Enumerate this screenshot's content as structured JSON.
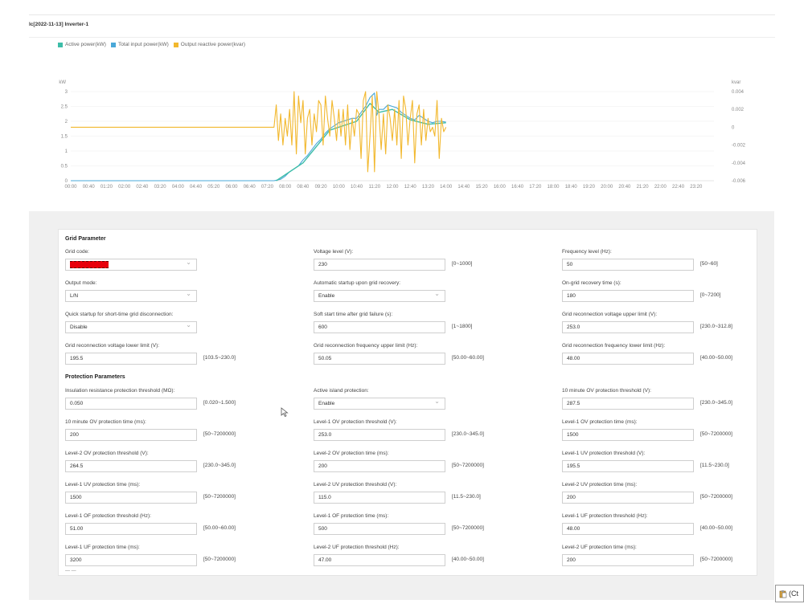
{
  "chart": {
    "title": "lc[2022-11-13] Inverter-1",
    "legend": [
      {
        "label": "Active power(kW)",
        "color": "#3dbda8"
      },
      {
        "label": "Total input power(kW)",
        "color": "#4aa8d8"
      },
      {
        "label": "Output reactive power(kvar)",
        "color": "#f2b82e"
      }
    ],
    "left_axis_unit": "kW",
    "right_axis_unit": "kvar"
  },
  "chart_data": {
    "type": "line",
    "x_ticks": [
      "00:00",
      "00:40",
      "01:20",
      "02:00",
      "02:40",
      "03:20",
      "04:00",
      "04:40",
      "05:20",
      "06:00",
      "06:40",
      "07:20",
      "08:00",
      "08:40",
      "09:20",
      "10:00",
      "10:40",
      "11:20",
      "12:00",
      "12:40",
      "13:20",
      "14:00",
      "14:40",
      "15:20",
      "16:00",
      "16:40",
      "17:20",
      "18:00",
      "18:40",
      "19:20",
      "20:00",
      "20:40",
      "21:20",
      "22:00",
      "22:40",
      "23:20"
    ],
    "y_left_ticks": [
      "0",
      "0.5",
      "1",
      "1.5",
      "2",
      "2.5",
      "3"
    ],
    "y_left_range": [
      0,
      3
    ],
    "y_right_ticks": [
      "-0.006",
      "-0.004",
      "-0.002",
      "0",
      "0.002",
      "0.004"
    ],
    "y_right_range": [
      -0.006,
      0.004
    ],
    "series": [
      {
        "name": "Total input power(kW)",
        "axis": "left",
        "color": "#4aa8d8",
        "points": [
          [
            0,
            0
          ],
          [
            100,
            0
          ],
          [
            420,
            0
          ],
          [
            455,
            0
          ],
          [
            470,
            0.05
          ],
          [
            480,
            0.15
          ],
          [
            490,
            0.3
          ],
          [
            500,
            0.4
          ],
          [
            510,
            0.5
          ],
          [
            520,
            0.7
          ],
          [
            530,
            0.85
          ],
          [
            540,
            1.05
          ],
          [
            550,
            1.25
          ],
          [
            560,
            1.4
          ],
          [
            570,
            1.6
          ],
          [
            580,
            1.75
          ],
          [
            590,
            1.85
          ],
          [
            600,
            1.95
          ],
          [
            610,
            2.0
          ],
          [
            620,
            2.05
          ],
          [
            630,
            2.1
          ],
          [
            640,
            2.1
          ],
          [
            650,
            2.3
          ],
          [
            660,
            2.5
          ],
          [
            670,
            2.8
          ],
          [
            680,
            2.95
          ],
          [
            685,
            2.2
          ],
          [
            690,
            2.4
          ],
          [
            700,
            2.4
          ],
          [
            710,
            2.55
          ],
          [
            720,
            2.5
          ],
          [
            730,
            2.45
          ],
          [
            740,
            2.3
          ],
          [
            750,
            2.2
          ],
          [
            760,
            2.1
          ],
          [
            770,
            2.05
          ],
          [
            780,
            2.2
          ],
          [
            790,
            2.1
          ],
          [
            800,
            2.0
          ],
          [
            810,
            1.95
          ],
          [
            820,
            2.0
          ],
          [
            830,
            2.0
          ],
          [
            840,
            1.97
          ]
        ]
      },
      {
        "name": "Active power(kW)",
        "axis": "left",
        "color": "#3dbda8",
        "points": [
          [
            460,
            0
          ],
          [
            520,
            0.6
          ],
          [
            580,
            1.7
          ],
          [
            640,
            2.0
          ],
          [
            670,
            2.6
          ],
          [
            690,
            2.3
          ],
          [
            720,
            2.4
          ],
          [
            760,
            2.05
          ],
          [
            800,
            1.9
          ],
          [
            840,
            1.95
          ]
        ]
      },
      {
        "name": "Output reactive power(kvar)",
        "axis": "right",
        "color": "#f2b82e",
        "points": [
          [
            0,
            0
          ],
          [
            455,
            0
          ],
          [
            460,
            0.0025
          ],
          [
            465,
            -0.0015
          ],
          [
            470,
            0.0015
          ],
          [
            475,
            -0.002
          ],
          [
            480,
            0.001
          ],
          [
            485,
            -0.001
          ],
          [
            490,
            0.002
          ],
          [
            495,
            -0.002
          ],
          [
            500,
            0.004
          ],
          [
            505,
            -0.003
          ],
          [
            510,
            0.0035
          ],
          [
            515,
            0.0005
          ],
          [
            520,
            0.003
          ],
          [
            525,
            -0.003
          ],
          [
            530,
            0.001
          ],
          [
            535,
            0.002
          ],
          [
            540,
            -0.002
          ],
          [
            545,
            0.0015
          ],
          [
            550,
            -0.0005
          ],
          [
            555,
            0.003
          ],
          [
            560,
            0.0025
          ],
          [
            565,
            -0.002
          ],
          [
            570,
            0.0035
          ],
          [
            575,
            0.001
          ],
          [
            580,
            -0.001
          ],
          [
            585,
            0.003
          ],
          [
            590,
            0.001
          ],
          [
            595,
            -0.0015
          ],
          [
            600,
            0.002
          ],
          [
            605,
            -0.001
          ],
          [
            610,
            0.002
          ],
          [
            615,
            -0.002
          ],
          [
            620,
            0.0025
          ],
          [
            625,
            -0.0025
          ],
          [
            630,
            0.001
          ],
          [
            635,
            -0.001
          ],
          [
            640,
            0.002
          ],
          [
            645,
            0.0015
          ],
          [
            650,
            -0.0035
          ],
          [
            655,
            0.003
          ],
          [
            660,
            0.004
          ],
          [
            665,
            -0.005
          ],
          [
            670,
            -0.001
          ],
          [
            675,
            0.0035
          ],
          [
            680,
            -0.005
          ],
          [
            685,
            0.004
          ],
          [
            690,
            0.0015
          ],
          [
            695,
            -0.0025
          ],
          [
            700,
            0.0015
          ],
          [
            705,
            -0.003
          ],
          [
            710,
            0.0025
          ],
          [
            715,
            0.001
          ],
          [
            720,
            -0.0015
          ],
          [
            725,
            0.002
          ],
          [
            730,
            -0.002
          ],
          [
            735,
            0.003
          ],
          [
            740,
            -0.0035
          ],
          [
            745,
            0.0035
          ],
          [
            750,
            0.002
          ],
          [
            755,
            -0.002
          ],
          [
            760,
            0.001
          ],
          [
            765,
            0.003
          ],
          [
            770,
            -0.004
          ],
          [
            775,
            0.0015
          ],
          [
            780,
            0.0025
          ],
          [
            785,
            -0.002
          ],
          [
            790,
            0.002
          ],
          [
            795,
            -0.0015
          ],
          [
            800,
            0.001
          ],
          [
            805,
            -0.0005
          ],
          [
            810,
            0.0
          ],
          [
            815,
            -0.001
          ],
          [
            820,
            0.003
          ],
          [
            825,
            -0.0035
          ],
          [
            830,
            0.001
          ],
          [
            835,
            -0.0005
          ],
          [
            840,
            0.0
          ]
        ]
      }
    ]
  },
  "grid_section": {
    "title": "Grid Parameter",
    "fields": [
      {
        "label": "Grid code:",
        "value": "",
        "type": "select",
        "redacted": true,
        "range": ""
      },
      {
        "label": "Voltage level (V):",
        "value": "230",
        "type": "input",
        "range": "[0~1000]"
      },
      {
        "label": "Frequency level (Hz):",
        "value": "50",
        "type": "input",
        "range": "[50~60]"
      },
      {
        "label": "Output mode:",
        "value": "L/N",
        "type": "select",
        "range": ""
      },
      {
        "label": "Automatic startup upon grid recovery:",
        "value": "Enable",
        "type": "select",
        "range": ""
      },
      {
        "label": "On-grid recovery time (s):",
        "value": "180",
        "type": "input",
        "range": "[0~7200]"
      },
      {
        "label": "Quick startup for short-time grid disconnection:",
        "value": "Disable",
        "type": "select",
        "range": ""
      },
      {
        "label": "Soft start time after grid failure (s):",
        "value": "600",
        "type": "input",
        "range": "[1~1800]"
      },
      {
        "label": "Grid reconnection voltage upper limit (V):",
        "value": "253.0",
        "type": "input",
        "range": "[230.0~312.8]"
      },
      {
        "label": "Grid reconnection voltage lower limit (V):",
        "value": "195.5",
        "type": "input",
        "range": "[103.5~230.0]"
      },
      {
        "label": "Grid reconnection frequency upper limit (Hz):",
        "value": "50.05",
        "type": "input",
        "range": "[50.00~60.00]"
      },
      {
        "label": "Grid reconnection frequency lower limit (Hz):",
        "value": "48.00",
        "type": "input",
        "range": "[40.00~50.00]"
      }
    ]
  },
  "protection_section": {
    "title": "Protection Parameters",
    "fields": [
      {
        "label": "Insulation resistance protection threshold (MΩ):",
        "value": "0.050",
        "type": "input",
        "range": "[0.020~1.500]"
      },
      {
        "label": "Active island protection:",
        "value": "Enable",
        "type": "select",
        "range": ""
      },
      {
        "label": "10 minute OV protection threshold (V):",
        "value": "287.5",
        "type": "input",
        "range": "[230.0~345.0]"
      },
      {
        "label": "10 minute OV protection time (ms):",
        "value": "200",
        "type": "input",
        "range": "[50~7200000]"
      },
      {
        "label": "Level-1 OV protection threshold (V):",
        "value": "253.0",
        "type": "input",
        "range": "[230.0~345.0]"
      },
      {
        "label": "Level-1 OV protection time (ms):",
        "value": "1500",
        "type": "input",
        "range": "[50~7200000]"
      },
      {
        "label": "Level-2 OV protection threshold (V):",
        "value": "264.5",
        "type": "input",
        "range": "[230.0~345.0]"
      },
      {
        "label": "Level-2 OV protection time (ms):",
        "value": "200",
        "type": "input",
        "range": "[50~7200000]"
      },
      {
        "label": "Level-1 UV protection threshold (V):",
        "value": "195.5",
        "type": "input",
        "range": "[11.5~230.0]"
      },
      {
        "label": "Level-1 UV protection time (ms):",
        "value": "1500",
        "type": "input",
        "range": "[50~7200000]"
      },
      {
        "label": "Level-2 UV protection threshold (V):",
        "value": "115.0",
        "type": "input",
        "range": "[11.5~230.0]"
      },
      {
        "label": "Level-2 UV protection time (ms):",
        "value": "200",
        "type": "input",
        "range": "[50~7200000]"
      },
      {
        "label": "Level-1 OF protection threshold (Hz):",
        "value": "51.00",
        "type": "input",
        "range": "[50.00~60.00]"
      },
      {
        "label": "Level-1 OF protection time (ms):",
        "value": "500",
        "type": "input",
        "range": "[50~7200000]"
      },
      {
        "label": "Level-1 UF protection threshold (Hz):",
        "value": "48.00",
        "type": "input",
        "range": "[40.00~50.00]"
      },
      {
        "label": "Level-1 UF protection time (ms):",
        "value": "3200",
        "type": "input",
        "range": "[50~7200000]"
      },
      {
        "label": "Level-2 UF protection threshold (Hz):",
        "value": "47.00",
        "type": "input",
        "range": "[40.00~50.00]"
      },
      {
        "label": "Level-2 UF protection time (ms):",
        "value": "200",
        "type": "input",
        "range": "[50~7200000]"
      }
    ]
  },
  "paste_widget": {
    "icon": "clipboard-icon",
    "label": "(Ct"
  }
}
